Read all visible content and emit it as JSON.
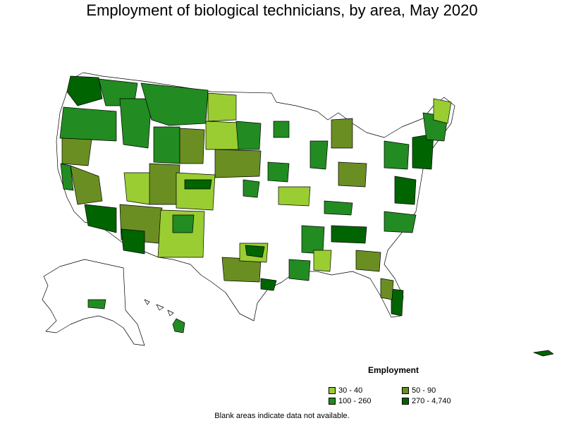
{
  "title": "Employment of biological technicians, by area, May 2020",
  "legend": {
    "title": "Employment",
    "items": [
      {
        "label": "30 - 40",
        "color": "#9acd32"
      },
      {
        "label": "50 - 90",
        "color": "#6b8e23"
      },
      {
        "label": "100 - 260",
        "color": "#228b22"
      },
      {
        "label": "270 - 4,740",
        "color": "#006400"
      }
    ]
  },
  "footnote": "Blank areas indicate data not available.",
  "colors": {
    "no_data": "#ffffff",
    "border": "#000000"
  }
}
